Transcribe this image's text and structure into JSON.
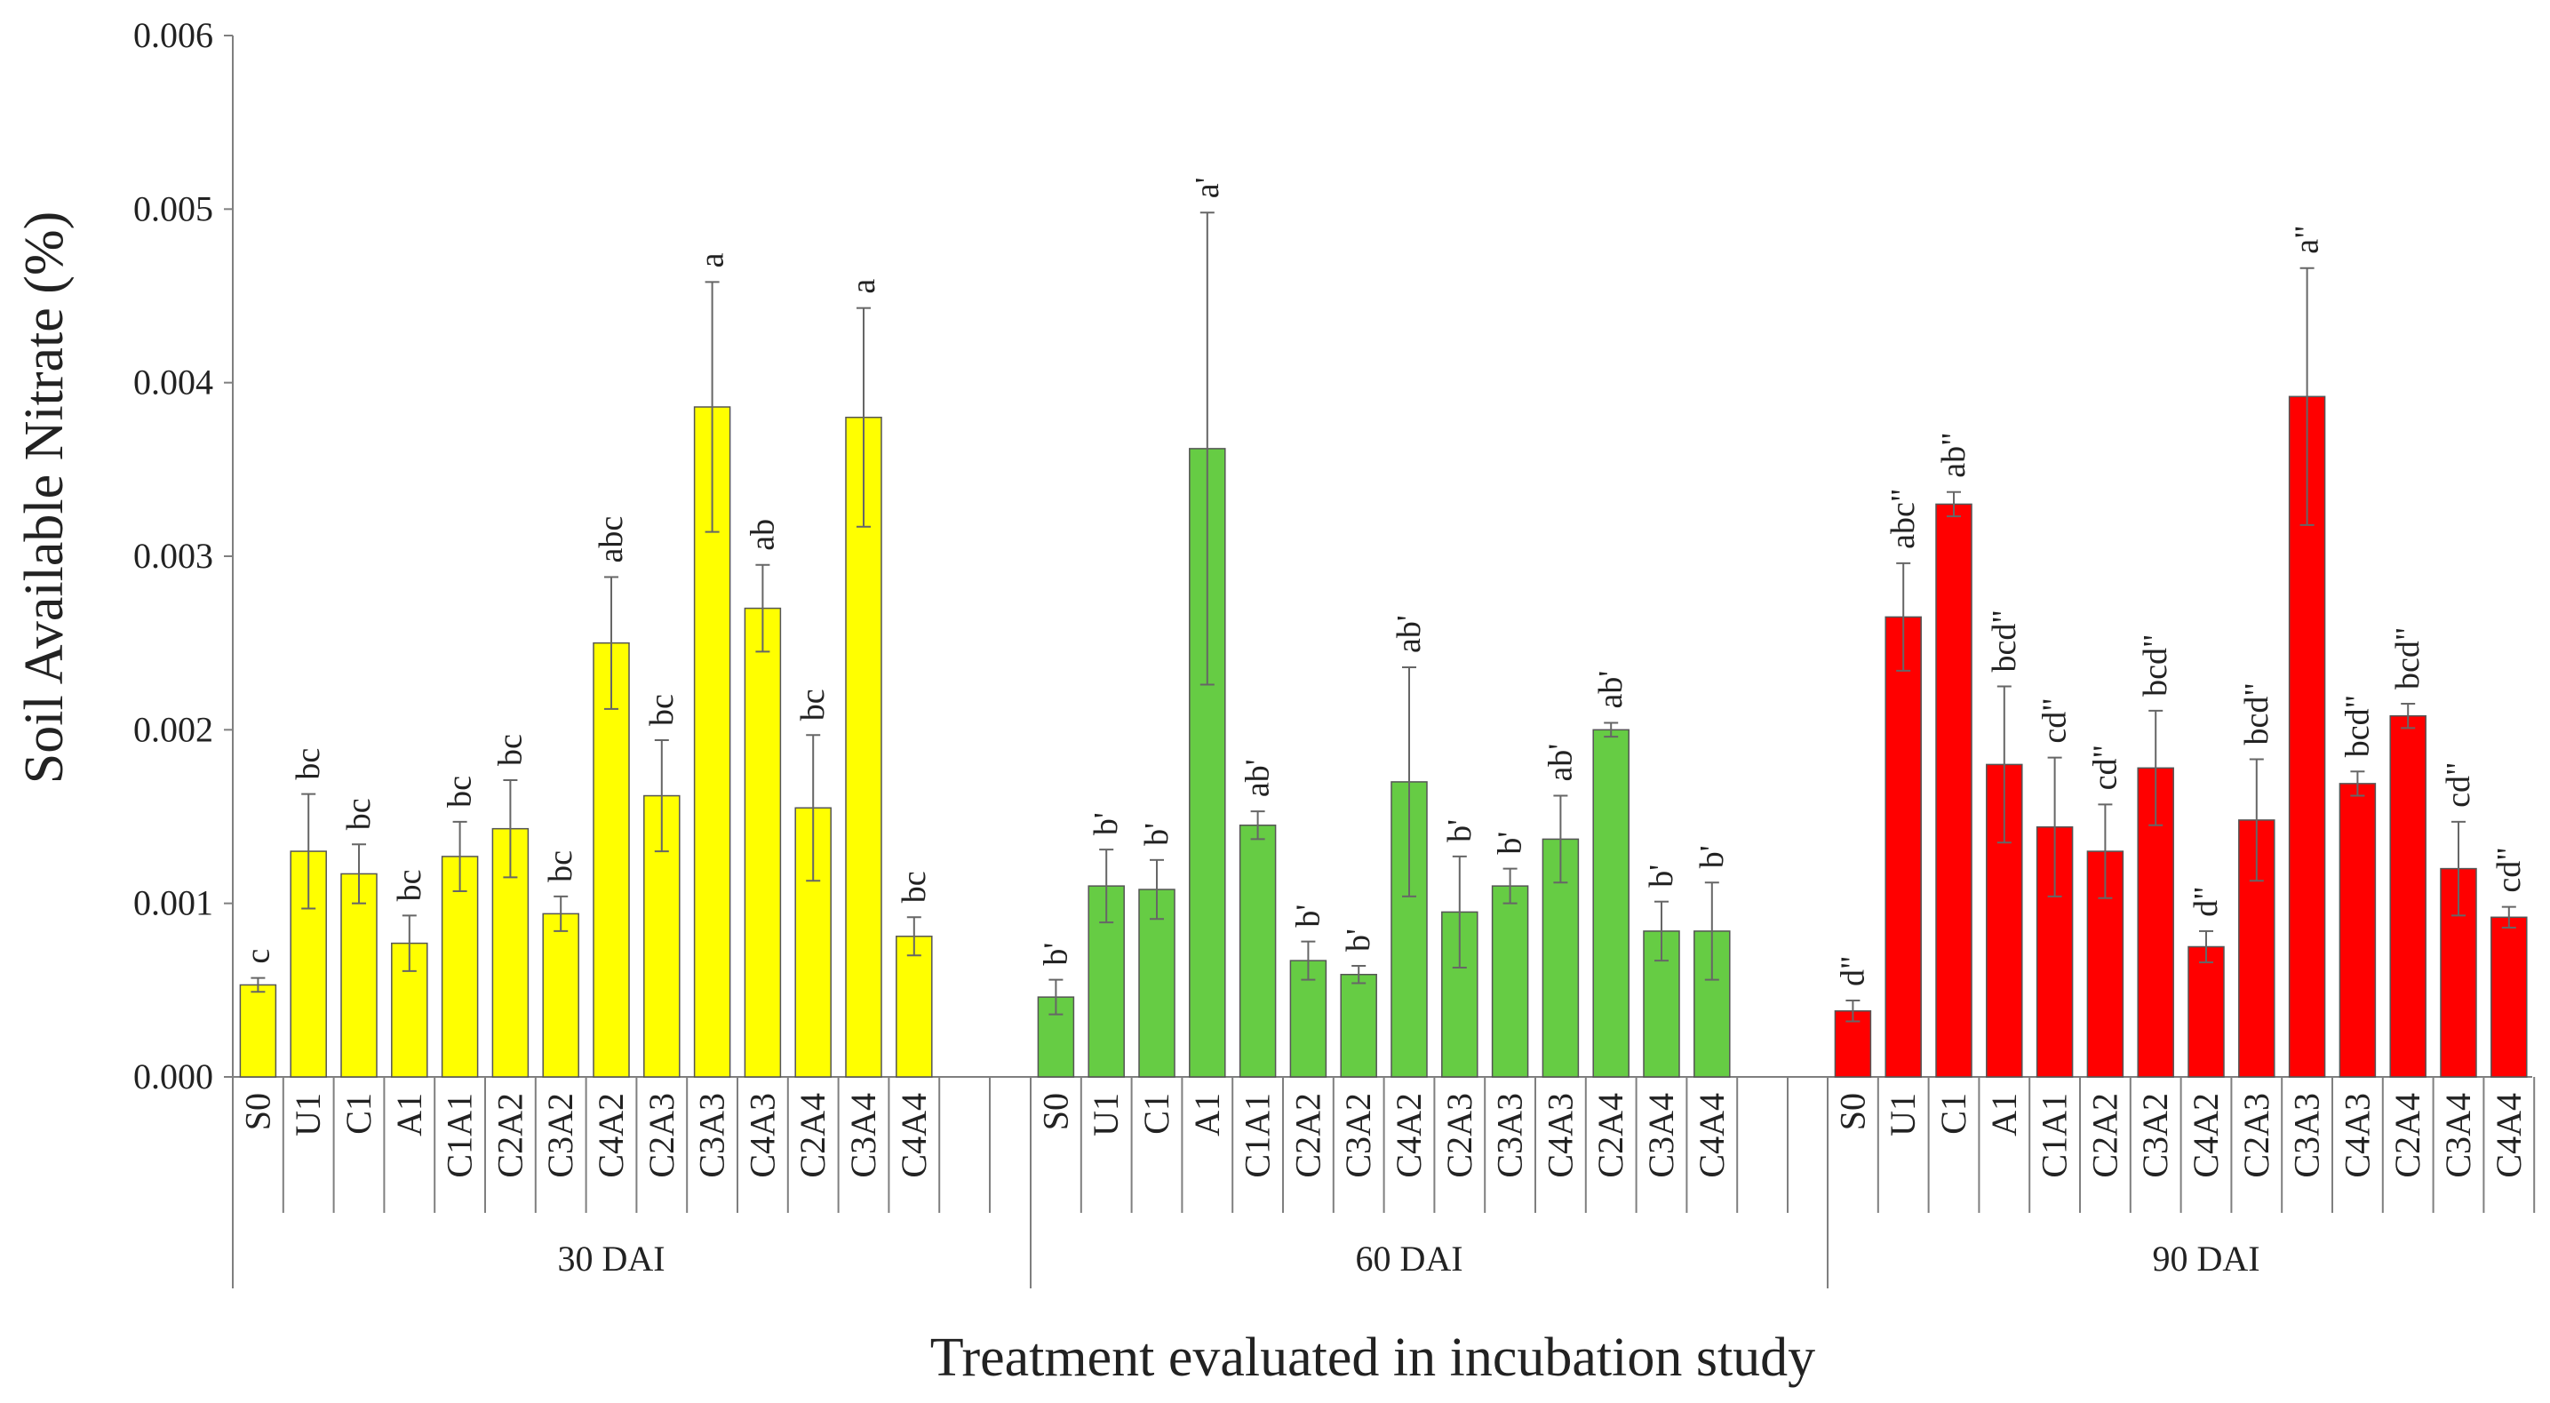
{
  "chart_data": {
    "type": "bar",
    "ylabel": "Soil Available Nitrate (%)",
    "xlabel": "Treatment evaluated in incubation study",
    "ylim": [
      0,
      0.006
    ],
    "yticks": [
      "0.000",
      "0.001",
      "0.002",
      "0.003",
      "0.004",
      "0.005",
      "0.006"
    ],
    "categories": [
      "S0",
      "U1",
      "C1",
      "A1",
      "C1A1",
      "C2A2",
      "C3A2",
      "C4A2",
      "C2A3",
      "C3A3",
      "C4A3",
      "C2A4",
      "C3A4",
      "C4A4"
    ],
    "groups": [
      {
        "name": "30 DAI",
        "color": "#ffff00",
        "values": [
          0.00053,
          0.0013,
          0.00117,
          0.00077,
          0.00127,
          0.00143,
          0.00094,
          0.0025,
          0.00162,
          0.00386,
          0.0027,
          0.00155,
          0.0038,
          0.00081
        ],
        "errors": [
          4e-05,
          0.00033,
          0.00017,
          0.00016,
          0.0002,
          0.00028,
          0.0001,
          0.00038,
          0.00032,
          0.00072,
          0.00025,
          0.00042,
          0.00063,
          0.00011
        ],
        "letters": [
          "c",
          "bc",
          "bc",
          "bc",
          "bc",
          "bc",
          "bc",
          "abc",
          "bc",
          "a",
          "ab",
          "bc",
          "a",
          "bc"
        ]
      },
      {
        "name": "60 DAI",
        "color": "#66cc44",
        "values": [
          0.00046,
          0.0011,
          0.00108,
          0.00362,
          0.00145,
          0.00067,
          0.00059,
          0.0017,
          0.00095,
          0.0011,
          0.00137,
          0.002,
          0.00084,
          0.00084
        ],
        "errors": [
          0.0001,
          0.00021,
          0.00017,
          0.00136,
          8e-05,
          0.00011,
          5e-05,
          0.00066,
          0.00032,
          0.0001,
          0.00025,
          4e-05,
          0.00017,
          0.00028
        ],
        "letters": [
          "b'",
          "b'",
          "b'",
          "a'",
          "ab'",
          "b'",
          "b'",
          "ab'",
          "b'",
          "b'",
          "ab'",
          "ab'",
          "b'",
          "b'"
        ]
      },
      {
        "name": "90 DAI",
        "color": "#ff0000",
        "values": [
          0.00038,
          0.00265,
          0.0033,
          0.0018,
          0.00144,
          0.0013,
          0.00178,
          0.00075,
          0.00148,
          0.00392,
          0.00169,
          0.00208,
          0.0012,
          0.00092
        ],
        "errors": [
          6e-05,
          0.00031,
          7e-05,
          0.00045,
          0.0004,
          0.00027,
          0.00033,
          9e-05,
          0.00035,
          0.00074,
          7e-05,
          7e-05,
          0.00027,
          6e-05
        ],
        "letters": [
          "d\"",
          "abc\"",
          "ab\"",
          "bcd\"",
          "cd\"",
          "cd\"",
          "bcd\"",
          "d\"",
          "bcd\"",
          "a\"",
          "bcd\"",
          "bcd\"",
          "cd\"",
          "cd\""
        ]
      }
    ]
  }
}
